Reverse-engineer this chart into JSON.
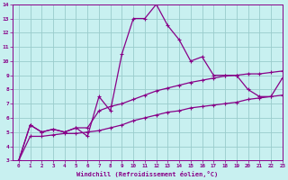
{
  "xlabel": "Windchill (Refroidissement éolien,°C)",
  "bg_color": "#c8f0f0",
  "line_color": "#880088",
  "grid_color": "#99cccc",
  "x_data": [
    0,
    1,
    2,
    3,
    4,
    5,
    6,
    7,
    8,
    9,
    10,
    11,
    12,
    13,
    14,
    15,
    16,
    17,
    18,
    19,
    20,
    21,
    22,
    23
  ],
  "y_main": [
    3.0,
    5.5,
    5.0,
    5.2,
    5.0,
    5.3,
    4.7,
    7.5,
    6.5,
    10.5,
    13.0,
    13.0,
    14.0,
    12.5,
    11.5,
    10.0,
    10.3,
    9.0,
    9.0,
    9.0,
    8.0,
    7.5,
    7.5,
    8.8
  ],
  "y_upper": [
    3.0,
    5.5,
    5.0,
    5.2,
    5.0,
    5.3,
    5.3,
    6.5,
    6.8,
    7.0,
    7.3,
    7.6,
    7.9,
    8.1,
    8.3,
    8.5,
    8.65,
    8.8,
    8.95,
    9.0,
    9.1,
    9.1,
    9.2,
    9.3
  ],
  "y_lower": [
    3.0,
    4.7,
    4.7,
    4.8,
    4.9,
    4.9,
    5.0,
    5.1,
    5.3,
    5.5,
    5.8,
    6.0,
    6.2,
    6.4,
    6.5,
    6.7,
    6.8,
    6.9,
    7.0,
    7.1,
    7.3,
    7.4,
    7.5,
    7.6
  ],
  "ylim": [
    3,
    14
  ],
  "xlim": [
    -0.5,
    23
  ],
  "yticks": [
    3,
    4,
    5,
    6,
    7,
    8,
    9,
    10,
    11,
    12,
    13,
    14
  ],
  "xticks": [
    0,
    1,
    2,
    3,
    4,
    5,
    6,
    7,
    8,
    9,
    10,
    11,
    12,
    13,
    14,
    15,
    16,
    17,
    18,
    19,
    20,
    21,
    22,
    23
  ]
}
